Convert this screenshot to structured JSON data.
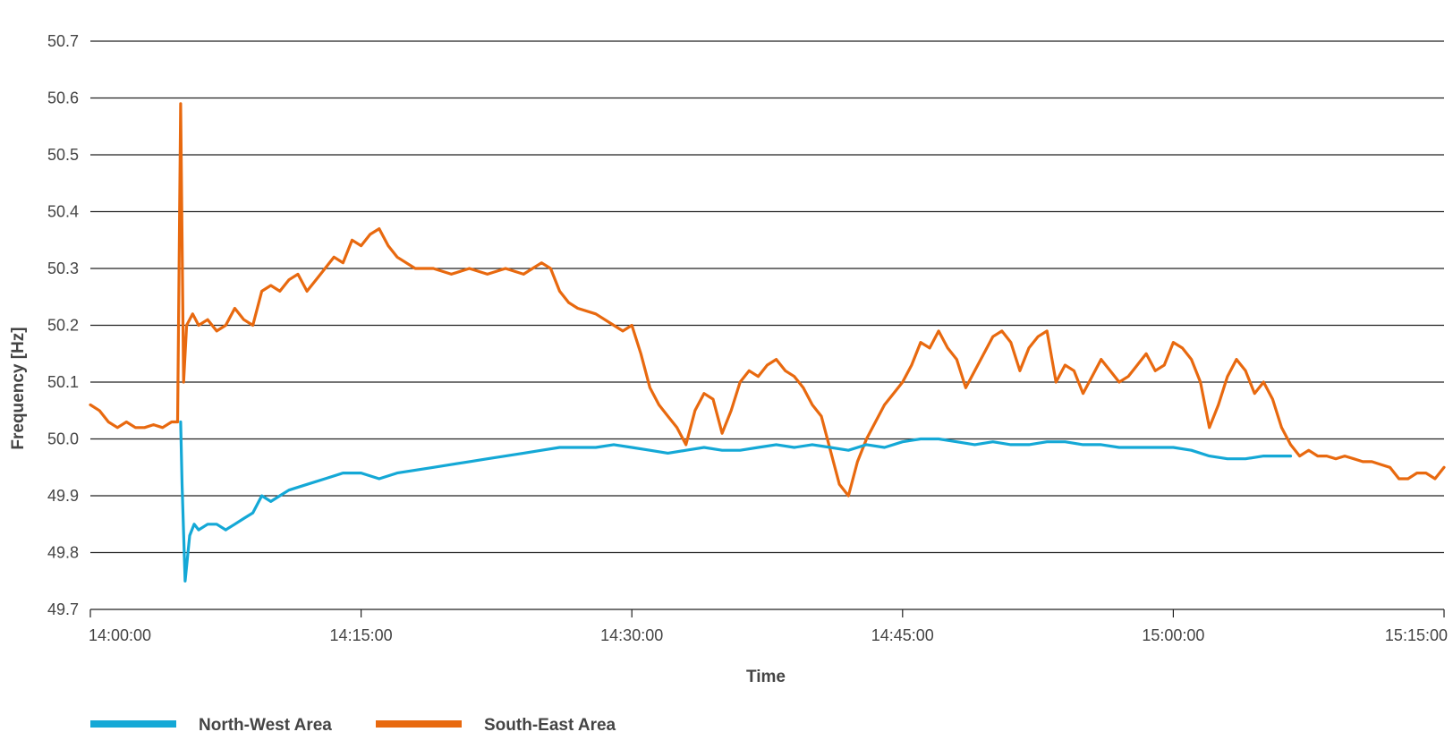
{
  "chart_data": {
    "type": "line",
    "title": "",
    "xlabel": "Time",
    "ylabel": "Frequency [Hz]",
    "x_ticks": [
      "14:00:00",
      "14:15:00",
      "14:30:00",
      "14:45:00",
      "15:00:00",
      "15:15:00"
    ],
    "xlim": [
      "14:00:00",
      "15:15:00"
    ],
    "ylim": [
      49.7,
      50.7
    ],
    "y_ticks": [
      "49.7",
      "49.8",
      "49.9",
      "50.0",
      "50.1",
      "50.2",
      "50.3",
      "50.4",
      "50.5",
      "50.6",
      "50.7"
    ],
    "grid": "horizontal",
    "legend": "bottom-left",
    "series": [
      {
        "name": "North-West Area",
        "color": "#14a8d6",
        "x": [
          "14:05:00",
          "14:05:05",
          "14:05:15",
          "14:05:30",
          "14:05:45",
          "14:06:00",
          "14:06:30",
          "14:07:00",
          "14:07:30",
          "14:08:00",
          "14:08:30",
          "14:09:00",
          "14:09:30",
          "14:10:00",
          "14:10:30",
          "14:11:00",
          "14:12:00",
          "14:13:00",
          "14:14:00",
          "14:15:00",
          "14:16:00",
          "14:17:00",
          "14:18:00",
          "14:19:00",
          "14:20:00",
          "14:21:00",
          "14:22:00",
          "14:23:00",
          "14:24:00",
          "14:25:00",
          "14:26:00",
          "14:27:00",
          "14:28:00",
          "14:29:00",
          "14:30:00",
          "14:31:00",
          "14:32:00",
          "14:33:00",
          "14:34:00",
          "14:35:00",
          "14:36:00",
          "14:37:00",
          "14:38:00",
          "14:39:00",
          "14:40:00",
          "14:41:00",
          "14:42:00",
          "14:43:00",
          "14:44:00",
          "14:45:00",
          "14:46:00",
          "14:47:00",
          "14:48:00",
          "14:49:00",
          "14:50:00",
          "14:51:00",
          "14:52:00",
          "14:53:00",
          "14:54:00",
          "14:55:00",
          "14:56:00",
          "14:57:00",
          "14:58:00",
          "14:59:00",
          "15:00:00",
          "15:01:00",
          "15:02:00",
          "15:03:00",
          "15:04:00",
          "15:05:00",
          "15:06:00",
          "15:06:30"
        ],
        "values": [
          50.03,
          49.92,
          49.75,
          49.83,
          49.85,
          49.84,
          49.85,
          49.85,
          49.84,
          49.85,
          49.86,
          49.87,
          49.9,
          49.89,
          49.9,
          49.91,
          49.92,
          49.93,
          49.94,
          49.94,
          49.93,
          49.94,
          49.945,
          49.95,
          49.955,
          49.96,
          49.965,
          49.97,
          49.975,
          49.98,
          49.985,
          49.985,
          49.985,
          49.99,
          49.985,
          49.98,
          49.975,
          49.98,
          49.985,
          49.98,
          49.98,
          49.985,
          49.99,
          49.985,
          49.99,
          49.985,
          49.98,
          49.99,
          49.985,
          49.995,
          50.0,
          50.0,
          49.995,
          49.99,
          49.995,
          49.99,
          49.99,
          49.995,
          49.995,
          49.99,
          49.99,
          49.985,
          49.985,
          49.985,
          49.985,
          49.98,
          49.97,
          49.965,
          49.965,
          49.97,
          49.97,
          49.97
        ]
      },
      {
        "name": "South-East Area",
        "color": "#e8690f",
        "x": [
          "14:00:00",
          "14:00:30",
          "14:01:00",
          "14:01:30",
          "14:02:00",
          "14:02:30",
          "14:03:00",
          "14:03:30",
          "14:04:00",
          "14:04:30",
          "14:04:50",
          "14:05:00",
          "14:05:10",
          "14:05:20",
          "14:05:40",
          "14:06:00",
          "14:06:30",
          "14:07:00",
          "14:07:30",
          "14:08:00",
          "14:08:30",
          "14:09:00",
          "14:09:30",
          "14:10:00",
          "14:10:30",
          "14:11:00",
          "14:11:30",
          "14:12:00",
          "14:12:30",
          "14:13:00",
          "14:13:30",
          "14:14:00",
          "14:14:30",
          "14:15:00",
          "14:15:30",
          "14:16:00",
          "14:16:30",
          "14:17:00",
          "14:18:00",
          "14:19:00",
          "14:20:00",
          "14:21:00",
          "14:22:00",
          "14:23:00",
          "14:24:00",
          "14:24:30",
          "14:25:00",
          "14:25:30",
          "14:26:00",
          "14:26:30",
          "14:27:00",
          "14:28:00",
          "14:29:00",
          "14:29:30",
          "14:30:00",
          "14:30:30",
          "14:31:00",
          "14:31:30",
          "14:32:00",
          "14:32:30",
          "14:33:00",
          "14:33:30",
          "14:34:00",
          "14:34:30",
          "14:35:00",
          "14:35:30",
          "14:36:00",
          "14:36:30",
          "14:37:00",
          "14:37:30",
          "14:38:00",
          "14:38:30",
          "14:39:00",
          "14:39:30",
          "14:40:00",
          "14:40:30",
          "14:41:00",
          "14:41:30",
          "14:42:00",
          "14:42:30",
          "14:43:00",
          "14:43:30",
          "14:44:00",
          "14:44:30",
          "14:45:00",
          "14:45:30",
          "14:46:00",
          "14:46:30",
          "14:47:00",
          "14:47:30",
          "14:48:00",
          "14:48:30",
          "14:49:00",
          "14:49:30",
          "14:50:00",
          "14:50:30",
          "14:51:00",
          "14:51:30",
          "14:52:00",
          "14:52:30",
          "14:53:00",
          "14:53:30",
          "14:54:00",
          "14:54:30",
          "14:55:00",
          "14:55:30",
          "14:56:00",
          "14:56:30",
          "14:57:00",
          "14:57:30",
          "14:58:00",
          "14:58:30",
          "14:59:00",
          "14:59:30",
          "15:00:00",
          "15:00:30",
          "15:01:00",
          "15:01:30",
          "15:02:00",
          "15:02:30",
          "15:03:00",
          "15:03:30",
          "15:04:00",
          "15:04:30",
          "15:05:00",
          "15:05:30",
          "15:06:00",
          "15:06:30",
          "15:07:00",
          "15:07:30",
          "15:08:00",
          "15:08:30",
          "15:09:00",
          "15:09:30",
          "15:10:00",
          "15:10:30",
          "15:11:00",
          "15:11:30",
          "15:12:00",
          "15:12:30",
          "15:13:00",
          "15:13:30",
          "15:14:00",
          "15:14:30",
          "15:15:00"
        ],
        "values": [
          50.06,
          50.05,
          50.03,
          50.02,
          50.03,
          50.02,
          50.02,
          50.025,
          50.02,
          50.03,
          50.03,
          50.59,
          50.1,
          50.2,
          50.22,
          50.2,
          50.21,
          50.19,
          50.2,
          50.23,
          50.21,
          50.2,
          50.26,
          50.27,
          50.26,
          50.28,
          50.29,
          50.26,
          50.28,
          50.3,
          50.32,
          50.31,
          50.35,
          50.34,
          50.36,
          50.37,
          50.34,
          50.32,
          50.3,
          50.3,
          50.29,
          50.3,
          50.29,
          50.3,
          50.29,
          50.3,
          50.31,
          50.3,
          50.26,
          50.24,
          50.23,
          50.22,
          50.2,
          50.19,
          50.2,
          50.15,
          50.09,
          50.06,
          50.04,
          50.02,
          49.99,
          50.05,
          50.08,
          50.07,
          50.01,
          50.05,
          50.1,
          50.12,
          50.11,
          50.13,
          50.14,
          50.12,
          50.11,
          50.09,
          50.06,
          50.04,
          49.98,
          49.92,
          49.9,
          49.96,
          50.0,
          50.03,
          50.06,
          50.08,
          50.1,
          50.13,
          50.17,
          50.16,
          50.19,
          50.16,
          50.14,
          50.09,
          50.12,
          50.15,
          50.18,
          50.19,
          50.17,
          50.12,
          50.16,
          50.18,
          50.19,
          50.1,
          50.13,
          50.12,
          50.08,
          50.11,
          50.14,
          50.12,
          50.1,
          50.11,
          50.13,
          50.15,
          50.12,
          50.13,
          50.17,
          50.16,
          50.14,
          50.1,
          50.02,
          50.06,
          50.11,
          50.14,
          50.12,
          50.08,
          50.1,
          50.07,
          50.02,
          49.99,
          49.97,
          49.98,
          49.97,
          49.97,
          49.965,
          49.97,
          49.965,
          49.96,
          49.96,
          49.955,
          49.95,
          49.93,
          49.93,
          49.94,
          49.94,
          49.93,
          49.95
        ]
      }
    ]
  }
}
